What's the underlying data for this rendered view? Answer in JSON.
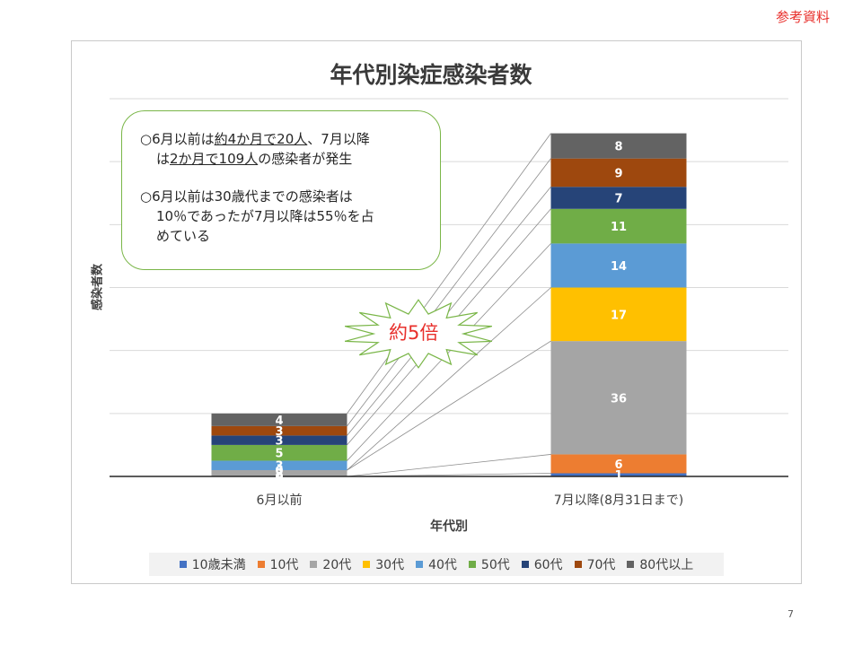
{
  "reference_label": "参考資料",
  "page_number": "7",
  "annotation": {
    "burst_text": "約5倍",
    "note_line1_pre": "○6月以前は",
    "note_line1_ul": "約4か月で20人",
    "note_line1_post": "、7月以降",
    "note_line2_pre": "は",
    "note_line2_ul": "2か月で109人",
    "note_line2_post": "の感染者が発生",
    "note_line3": "○6月以前は30歳代までの感染者は",
    "note_line4": "10％であったが7月以降は55％を占",
    "note_line5": "めている"
  },
  "chart_data": {
    "type": "bar",
    "stacked": true,
    "title": "年代別染症感染者数",
    "xlabel": "年代別",
    "ylabel": "感染者数",
    "categories": [
      "6月以前",
      "7月以降(8月31日まで)"
    ],
    "ylim": [
      0,
      120
    ],
    "grid": true,
    "legend_position": "bottom",
    "series": [
      {
        "name": "10歳未満",
        "color": "#4472c4",
        "values": [
          0,
          1
        ]
      },
      {
        "name": "10代",
        "color": "#ed7d31",
        "values": [
          0,
          6
        ]
      },
      {
        "name": "20代",
        "color": "#a5a5a5",
        "values": [
          2,
          36
        ]
      },
      {
        "name": "30代",
        "color": "#ffc000",
        "values": [
          0,
          17
        ]
      },
      {
        "name": "40代",
        "color": "#5b9bd5",
        "values": [
          3,
          14
        ]
      },
      {
        "name": "50代",
        "color": "#70ad47",
        "values": [
          5,
          11
        ]
      },
      {
        "name": "60代",
        "color": "#264478",
        "values": [
          3,
          7
        ]
      },
      {
        "name": "70代",
        "color": "#9e480e",
        "values": [
          3,
          9
        ]
      },
      {
        "name": "80代以上",
        "color": "#636363",
        "values": [
          4,
          8
        ]
      }
    ]
  }
}
